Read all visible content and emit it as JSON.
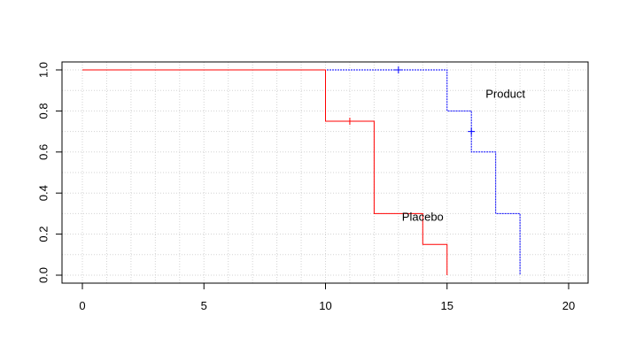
{
  "chart_data": {
    "type": "line",
    "title": "",
    "xlabel": "",
    "ylabel": "",
    "xlim": [
      0,
      20
    ],
    "ylim": [
      0,
      1
    ],
    "x_ticks": [
      "0",
      "5",
      "10",
      "15",
      "20"
    ],
    "y_ticks": [
      "0.0",
      "0.2",
      "0.4",
      "0.6",
      "0.8",
      "1.0"
    ],
    "grid": true,
    "step": true,
    "series": [
      {
        "name": "Product",
        "color": "#0000ff",
        "line_style": "dashed",
        "steps": [
          [
            0,
            1.0
          ],
          [
            15,
            0.8
          ],
          [
            16,
            0.6
          ],
          [
            17,
            0.3
          ],
          [
            18,
            0.0
          ]
        ],
        "end_x": 18,
        "censored": [
          [
            13,
            1.0
          ],
          [
            16,
            0.7
          ]
        ]
      },
      {
        "name": "Placebo",
        "color": "#ff0000",
        "line_style": "solid",
        "steps": [
          [
            0,
            1.0
          ],
          [
            10,
            0.75
          ],
          [
            12,
            0.3
          ],
          [
            14,
            0.15
          ],
          [
            15,
            0.0
          ]
        ],
        "end_x": 15,
        "censored": [
          [
            11,
            0.75
          ]
        ]
      }
    ],
    "annotations": [
      {
        "text": "Product",
        "x": 17.4,
        "y": 0.88,
        "series": "Product"
      },
      {
        "text": "Placebo",
        "x": 14.0,
        "y": 0.28,
        "series": "Placebo"
      }
    ]
  }
}
